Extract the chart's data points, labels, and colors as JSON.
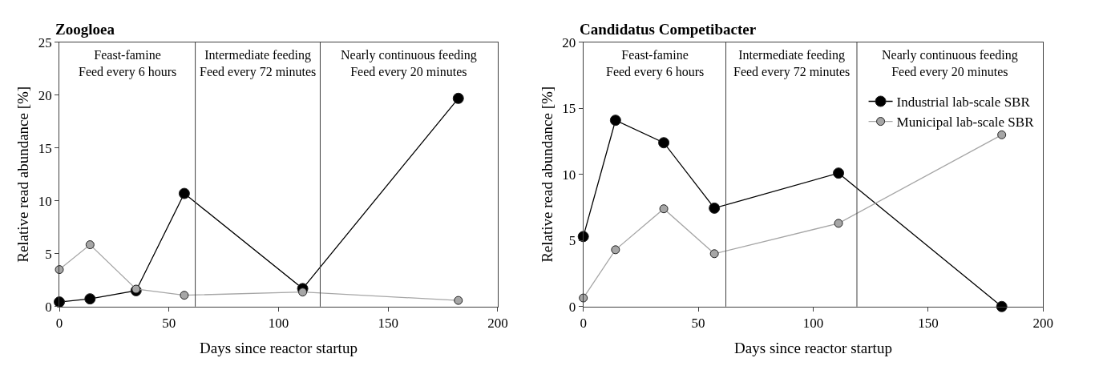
{
  "chart_data": [
    {
      "type": "line",
      "title": "Zoogloea",
      "xlabel": "Days since reactor startup",
      "ylabel": "Relative read abundance [%]",
      "x": [
        0,
        14,
        35,
        57,
        111,
        182
      ],
      "xlim": [
        0,
        200
      ],
      "xticks": [
        0,
        50,
        100,
        150,
        200
      ],
      "ylim": [
        0,
        25
      ],
      "yticks": [
        0,
        5,
        10,
        15,
        20,
        25
      ],
      "legend": false,
      "marker": "circle",
      "line_style": "solid",
      "series": [
        {
          "color": "#000000",
          "values": [
            0.43,
            0.73,
            1.5,
            10.7,
            1.7,
            19.7
          ]
        },
        {
          "color": "#a6a6a6",
          "values": [
            3.5,
            5.85,
            1.65,
            1.07,
            1.37,
            0.58
          ]
        }
      ],
      "ref_lines": [
        {
          "axis": "x",
          "value": 62,
          "color": "#404040"
        },
        {
          "axis": "x",
          "value": 119,
          "color": "#404040"
        }
      ],
      "annotations": [
        "Feast-famine\nFeed every 6 hours",
        "Intermediate feeding\nFeed every 72 minutes",
        "Nearly continuous feeding\nFeed every 20 minutes"
      ]
    },
    {
      "type": "line",
      "title": "Candidatus Competibacter",
      "xlabel": "Days since reactor startup",
      "ylabel": "Relative read abundance [%]",
      "x": [
        0,
        14,
        35,
        57,
        111,
        182
      ],
      "xlim": [
        0,
        200
      ],
      "xticks": [
        0,
        50,
        100,
        150,
        200
      ],
      "ylim": [
        0,
        20
      ],
      "yticks": [
        0,
        5,
        10,
        15,
        20
      ],
      "legend": "top right",
      "marker": "circle",
      "line_style": "solid",
      "series": [
        {
          "name": "Industrial lab-scale SBR",
          "color": "#000000",
          "values": [
            5.3,
            14.1,
            12.4,
            7.45,
            10.1,
            0
          ]
        },
        {
          "name": "Municipal lab-scale SBR",
          "color": "#a6a6a6",
          "values": [
            0.65,
            4.3,
            7.4,
            4.0,
            6.3,
            13.0
          ]
        }
      ],
      "ref_lines": [
        {
          "axis": "x",
          "value": 62,
          "color": "#404040"
        },
        {
          "axis": "x",
          "value": 119,
          "color": "#404040"
        }
      ],
      "annotations": [
        "Feast-famine\nFeed every 6 hours",
        "Intermediate feeding\nFeed every 72 minutes",
        "Nearly continuous feeding\nFeed every 20 minutes"
      ]
    }
  ]
}
